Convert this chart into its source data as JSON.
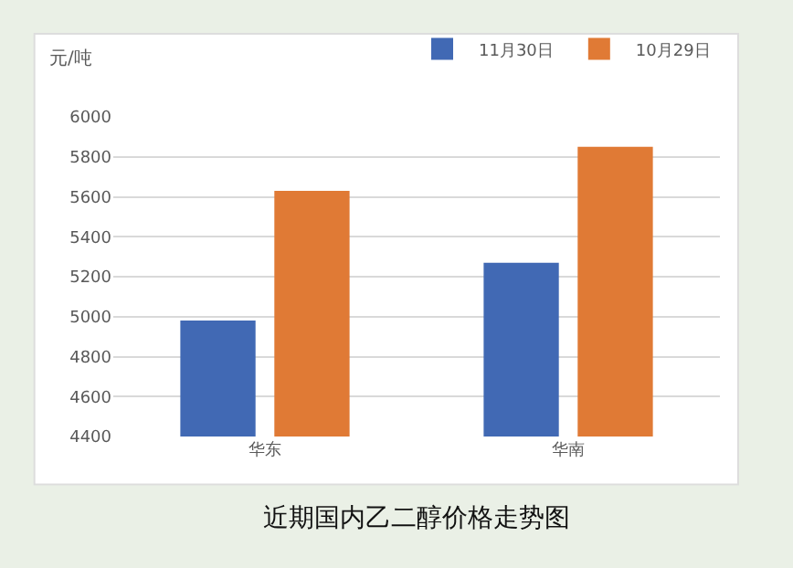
{
  "chart_data": {
    "type": "bar",
    "title": "近期国内乙二醇价格走势图",
    "ylabel": "元/吨",
    "categories": [
      "华东",
      "华南"
    ],
    "series": [
      {
        "name": "11月30日",
        "color": "#4169b4",
        "values": [
          4980,
          5270
        ]
      },
      {
        "name": "10月29日",
        "color": "#e07a35",
        "values": [
          5630,
          5850
        ]
      }
    ],
    "ylim": [
      4400,
      6000
    ],
    "yticks": [
      4400,
      4600,
      4800,
      5000,
      5200,
      5400,
      5600,
      5800,
      6000
    ],
    "grid": "y",
    "legend": "top right"
  }
}
